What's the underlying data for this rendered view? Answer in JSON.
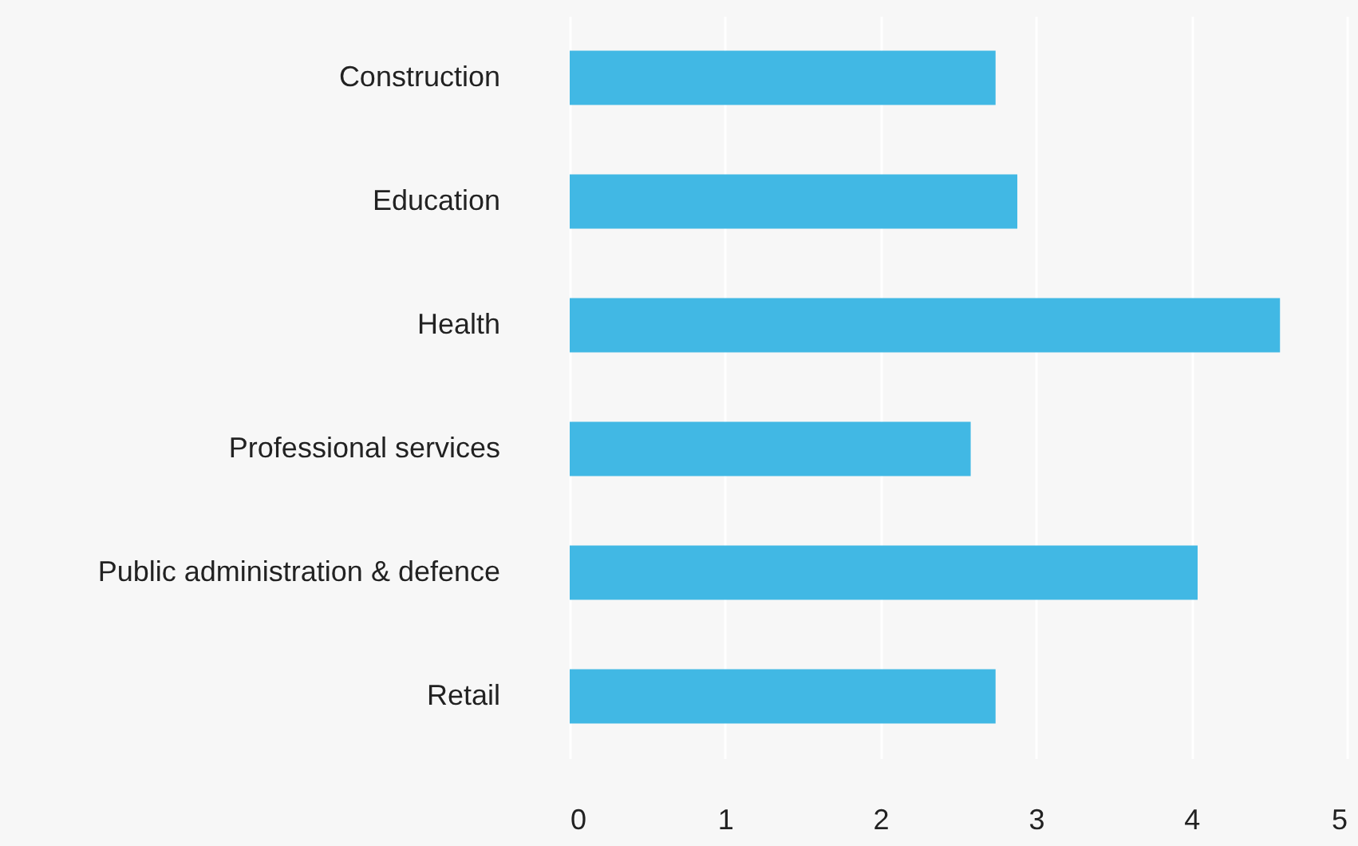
{
  "chart_data": {
    "type": "bar",
    "orientation": "horizontal",
    "categories": [
      "Construction",
      "Education",
      "Health",
      "Professional services",
      "Public administration & defence",
      "Retail"
    ],
    "values": [
      2.74,
      2.88,
      4.57,
      2.58,
      4.04,
      2.74
    ],
    "color": "#41b8e4",
    "xlim": [
      0,
      5
    ],
    "xticks": [
      0,
      1,
      2,
      3,
      4,
      5
    ],
    "grid": "x"
  }
}
